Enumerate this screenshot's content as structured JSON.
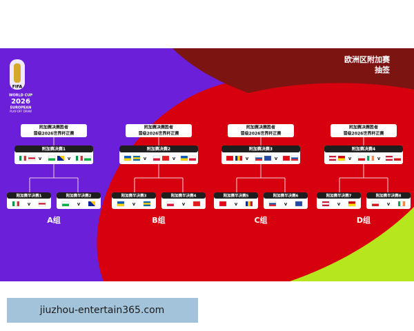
{
  "header": {
    "title": "欧洲区附加赛",
    "subtitle": "抽签"
  },
  "logo": {
    "lines": [
      "WORLD CUP",
      "2026",
      "EUROPEAN",
      "PLAY-OFF DRAW"
    ],
    "fifa": "FIFA"
  },
  "versus": "v",
  "groups": [
    {
      "winner": [
        "附加赛决赛胜者",
        "晋级2026世界杯正赛"
      ],
      "final": "附加赛决赛1",
      "semis": [
        "附加赛半决赛1",
        "附加赛半决赛2"
      ],
      "name": "A组"
    },
    {
      "winner": [
        "附加赛决赛胜者",
        "晋级2026世界杯正赛"
      ],
      "final": "附加赛决赛2",
      "semis": [
        "附加赛半决赛3",
        "附加赛半决赛4"
      ],
      "name": "B组"
    },
    {
      "winner": [
        "附加赛决赛胜者",
        "晋级2026世界杯正赛"
      ],
      "final": "附加赛决赛3",
      "semis": [
        "附加赛半决赛5",
        "附加赛半决赛6"
      ],
      "name": "C组"
    },
    {
      "winner": [
        "附加赛决赛胜者",
        "晋级2026世界杯正赛"
      ],
      "final": "附加赛决赛4",
      "semis": [
        "附加赛半决赛7",
        "附加赛半决赛8"
      ],
      "name": "D组"
    }
  ],
  "footer": "jiuzhou-entertain365.com"
}
